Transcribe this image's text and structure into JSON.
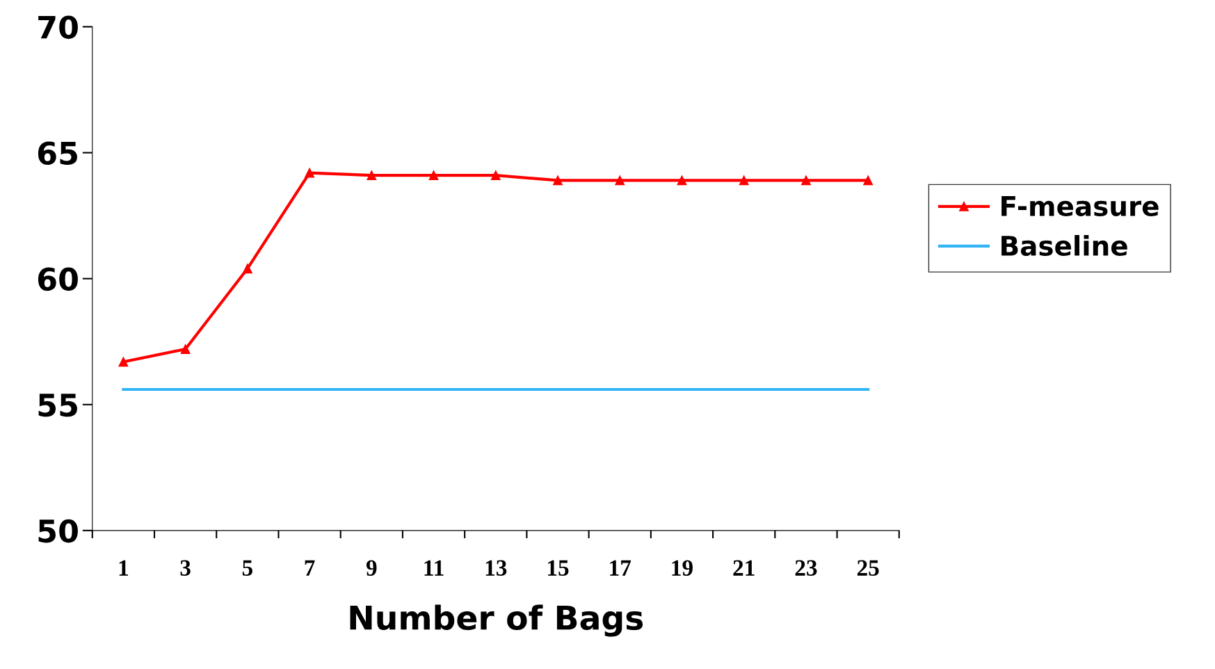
{
  "chart_data": {
    "type": "line",
    "xlabel": "Number of Bags",
    "categories": [
      "1",
      "3",
      "5",
      "7",
      "9",
      "11",
      "13",
      "15",
      "17",
      "19",
      "21",
      "23",
      "25"
    ],
    "series": [
      {
        "name": "F-measure",
        "color": "#ff0000",
        "marker": "triangle",
        "values": [
          56.7,
          57.2,
          60.4,
          64.2,
          64.1,
          64.1,
          64.1,
          63.9,
          63.9,
          63.9,
          63.9,
          63.9,
          63.9
        ]
      },
      {
        "name": "Baseline",
        "color": "#33b5f5",
        "marker": "none",
        "values": [
          55.6,
          55.6,
          55.6,
          55.6,
          55.6,
          55.6,
          55.6,
          55.6,
          55.6,
          55.6,
          55.6,
          55.6,
          55.6
        ]
      }
    ],
    "ylim": [
      50,
      70
    ],
    "yticks": [
      50,
      55,
      60,
      65,
      70
    ],
    "grid": false,
    "legend": "right"
  }
}
